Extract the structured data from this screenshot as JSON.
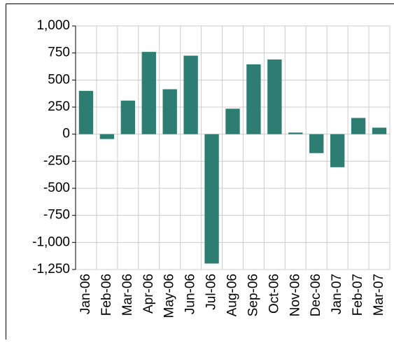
{
  "chart_data": {
    "type": "bar",
    "categories": [
      "Jan-06",
      "Feb-06",
      "Mar-06",
      "Apr-06",
      "May-06",
      "Jun-06",
      "Jul-06",
      "Aug-06",
      "Sep-06",
      "Oct-06",
      "Nov-06",
      "Dec-06",
      "Jan-07",
      "Feb-07",
      "Mar-07"
    ],
    "values": [
      400,
      -45,
      310,
      760,
      415,
      725,
      -1195,
      235,
      645,
      690,
      15,
      -175,
      -305,
      150,
      60
    ],
    "color": "#2e7d73",
    "ylim": [
      -1250,
      1000
    ],
    "yticks": [
      {
        "value": 1000,
        "label": "1,000"
      },
      750,
      500,
      250,
      0,
      -250,
      -500,
      -750,
      {
        "value": -1000,
        "label": "-1,000"
      },
      {
        "value": -1250,
        "label": "-1,250"
      }
    ],
    "grid": true
  }
}
